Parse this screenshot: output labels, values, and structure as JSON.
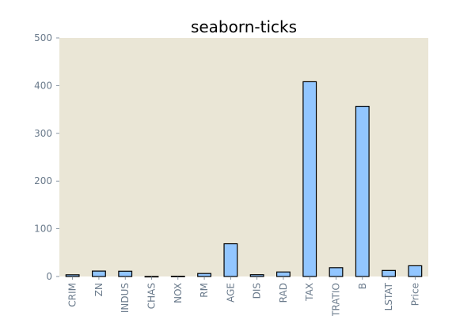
{
  "chart_data": {
    "type": "bar",
    "title": "seaborn-ticks",
    "xlabel": "",
    "ylabel": "",
    "categories": [
      "CRIM",
      "ZN",
      "INDUS",
      "CHAS",
      "NOX",
      "RM",
      "AGE",
      "DIS",
      "RAD",
      "TAX",
      "PTRATIO",
      "B",
      "LSTAT",
      "Price"
    ],
    "values": [
      3.6,
      11.4,
      11.1,
      0.07,
      0.55,
      6.3,
      68.6,
      3.8,
      9.5,
      408.2,
      18.5,
      356.7,
      12.7,
      22.5
    ],
    "ylim": [
      0,
      500
    ],
    "yticks": [
      0,
      100,
      200,
      300,
      400,
      500
    ],
    "grid": false,
    "legend": "none",
    "colors": {
      "bar_fill": "#92c6ff",
      "bar_edge": "#000000",
      "plot_background": "#eae6d6",
      "tick_label": "#6b7b8c",
      "title": "#000000"
    }
  }
}
